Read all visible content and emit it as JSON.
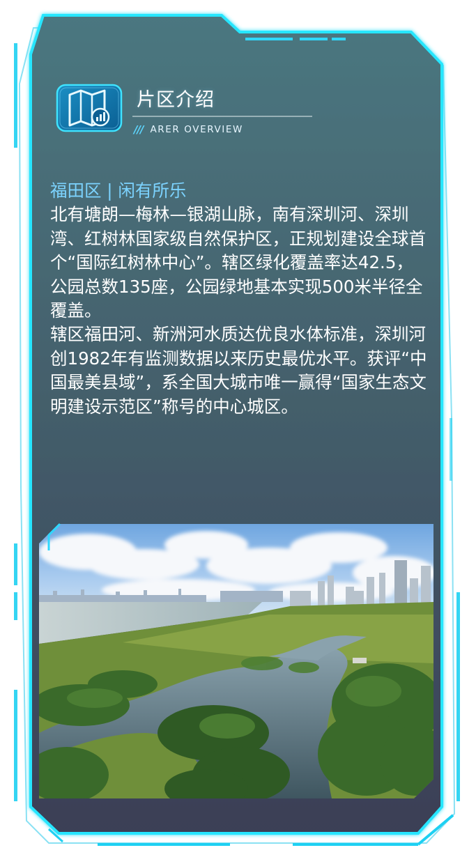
{
  "header": {
    "title": "片区介绍",
    "subtitle": "ARER OVERVIEW",
    "icon": "map-chart-icon"
  },
  "content": {
    "heading": "福田区 | 闲有所乐",
    "paragraphs": [
      "北有塘朗—梅林—银湖山脉，南有深圳河、深圳湾、红树林国家级自然保护区，正规划建设全球首个“国际红树林中心”。辖区绿化覆盖率达42.5，公园总数135座，公园绿地基本实现500米半径全覆盖。",
      "辖区福田河、新洲河水质达优良水体标准，深圳河创1982年有监测数据以来历史最优水平。获评“中国最美县域”，系全国大城市唯一赢得“国家生态文明建设示范区”称号的中心城区。"
    ]
  },
  "photo": {
    "subject": "mangrove-wetland-city-skyline"
  },
  "colors": {
    "frame_glow": "#22e3ff",
    "panel_top": "#47707a",
    "panel_bottom": "#3d4158",
    "heading": "#7cd3ff",
    "text": "#ffffff"
  }
}
